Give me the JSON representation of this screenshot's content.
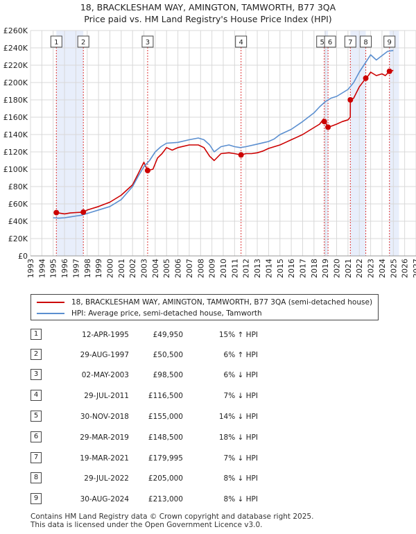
{
  "title_line1": "18, BRACKLESHAM WAY, AMINGTON, TAMWORTH, B77 3QA",
  "title_line2": "Price paid vs. HM Land Registry's House Price Index (HPI)",
  "legend": {
    "property": "18, BRACKLESHAM WAY, AMINGTON, TAMWORTH, B77 3QA (semi-detached house)",
    "hpi": "HPI: Average price, semi-detached house, Tamworth"
  },
  "colors": {
    "property": "#cc0000",
    "hpi": "#5b8fd0",
    "shade": "#e8eefb",
    "grid": "#d8d8d8"
  },
  "sales": [
    {
      "n": "1",
      "date": "12-APR-1995",
      "price": "£49,950",
      "hpi": "15% ↑ HPI"
    },
    {
      "n": "2",
      "date": "29-AUG-1997",
      "price": "£50,500",
      "hpi": "6% ↑ HPI"
    },
    {
      "n": "3",
      "date": "02-MAY-2003",
      "price": "£98,500",
      "hpi": "6% ↓ HPI"
    },
    {
      "n": "4",
      "date": "29-JUL-2011",
      "price": "£116,500",
      "hpi": "7% ↓ HPI"
    },
    {
      "n": "5",
      "date": "30-NOV-2018",
      "price": "£155,000",
      "hpi": "14% ↓ HPI"
    },
    {
      "n": "6",
      "date": "29-MAR-2019",
      "price": "£148,500",
      "hpi": "18% ↓ HPI"
    },
    {
      "n": "7",
      "date": "19-MAR-2021",
      "price": "£179,995",
      "hpi": "7% ↓ HPI"
    },
    {
      "n": "8",
      "date": "29-JUL-2022",
      "price": "£205,000",
      "hpi": "8% ↓ HPI"
    },
    {
      "n": "9",
      "date": "30-AUG-2024",
      "price": "£213,000",
      "hpi": "8% ↓ HPI"
    }
  ],
  "footer": {
    "line1": "Contains HM Land Registry data © Crown copyright and database right 2025.",
    "line2": "This data is licensed under the Open Government Licence v3.0."
  },
  "chart_data": {
    "type": "line",
    "title": "18, BRACKLESHAM WAY, AMINGTON, TAMWORTH, B77 3QA",
    "subtitle": "Price paid vs. HM Land Registry's House Price Index (HPI)",
    "xlabel": "",
    "ylabel": "",
    "xlim": [
      1993,
      2027
    ],
    "ylim": [
      0,
      260000
    ],
    "x_ticks": [
      1993,
      1994,
      1995,
      1996,
      1997,
      1998,
      1999,
      2000,
      2001,
      2002,
      2003,
      2004,
      2005,
      2006,
      2007,
      2008,
      2009,
      2010,
      2011,
      2012,
      2013,
      2014,
      2015,
      2016,
      2017,
      2018,
      2019,
      2020,
      2021,
      2022,
      2023,
      2024,
      2025,
      2026,
      2027
    ],
    "y_ticks": [
      0,
      20000,
      40000,
      60000,
      80000,
      100000,
      120000,
      140000,
      160000,
      180000,
      200000,
      220000,
      240000,
      260000
    ],
    "y_tick_labels": [
      "£0",
      "£20K",
      "£40K",
      "£60K",
      "£80K",
      "£100K",
      "£120K",
      "£140K",
      "£160K",
      "£180K",
      "£200K",
      "£220K",
      "£240K",
      "£260K"
    ],
    "shaded_intervals": [
      [
        1995.28,
        1997.66
      ],
      [
        2018.91,
        2019.24
      ],
      [
        2021.21,
        2022.57
      ],
      [
        2024.66,
        2025.5
      ]
    ],
    "sale_markers": [
      {
        "n": "1",
        "x": 1995.28,
        "y": 49950
      },
      {
        "n": "2",
        "x": 1997.66,
        "y": 50500
      },
      {
        "n": "3",
        "x": 2003.33,
        "y": 98500
      },
      {
        "n": "4",
        "x": 2011.57,
        "y": 116500
      },
      {
        "n": "5",
        "x": 2018.91,
        "y": 155000
      },
      {
        "n": "6",
        "x": 2019.24,
        "y": 148500
      },
      {
        "n": "7",
        "x": 2021.21,
        "y": 179995
      },
      {
        "n": "8",
        "x": 2022.57,
        "y": 205000
      },
      {
        "n": "9",
        "x": 2024.66,
        "y": 213000
      }
    ],
    "series": [
      {
        "name": "18, BRACKLESHAM WAY, AMINGTON, TAMWORTH, B77 3QA (semi-detached house)",
        "x": [
          1995.28,
          1996.0,
          1996.5,
          1997.0,
          1997.66,
          1998.0,
          1999.0,
          2000.0,
          2001.0,
          2002.0,
          2002.5,
          2003.0,
          2003.33,
          2003.8,
          2004.2,
          2004.6,
          2005.0,
          2005.5,
          2006.0,
          2007.0,
          2007.8,
          2008.3,
          2008.8,
          2009.2,
          2009.8,
          2010.5,
          2011.0,
          2011.57,
          2012.0,
          2012.5,
          2013.0,
          2013.5,
          2014.0,
          2014.5,
          2015.0,
          2015.5,
          2016.0,
          2016.5,
          2017.0,
          2017.5,
          2018.0,
          2018.5,
          2018.85,
          2018.91,
          2019.1,
          2019.24,
          2019.6,
          2020.0,
          2020.5,
          2021.0,
          2021.2,
          2021.21,
          2021.5,
          2022.0,
          2022.57,
          2022.8,
          2023.0,
          2023.5,
          2024.0,
          2024.3,
          2024.66,
          2025.0
        ],
        "y": [
          49950,
          48500,
          49500,
          50000,
          50500,
          53000,
          57000,
          62000,
          70000,
          82000,
          95000,
          108000,
          98500,
          100000,
          113000,
          118000,
          125000,
          122000,
          125000,
          128000,
          128000,
          125000,
          115000,
          110000,
          118000,
          119000,
          118000,
          116500,
          118000,
          118000,
          119000,
          121000,
          124000,
          126000,
          128000,
          131000,
          134000,
          137000,
          140000,
          144000,
          148000,
          152000,
          158000,
          155000,
          152000,
          148500,
          150000,
          152000,
          155000,
          157000,
          160000,
          179995,
          182000,
          195000,
          205000,
          208000,
          212000,
          208000,
          210000,
          208000,
          213000,
          214000
        ]
      },
      {
        "name": "HPI: Average price, semi-detached house, Tamworth",
        "x": [
          1995.0,
          1995.5,
          1996.0,
          1996.5,
          1997.0,
          1997.5,
          1998.0,
          1999.0,
          2000.0,
          2001.0,
          2002.0,
          2002.5,
          2003.0,
          2003.5,
          2004.0,
          2004.5,
          2005.0,
          2006.0,
          2007.0,
          2007.8,
          2008.3,
          2008.8,
          2009.2,
          2009.8,
          2010.5,
          2011.0,
          2011.5,
          2012.0,
          2013.0,
          2014.0,
          2014.5,
          2015.0,
          2016.0,
          2017.0,
          2018.0,
          2018.5,
          2019.0,
          2019.5,
          2020.0,
          2020.5,
          2021.0,
          2021.5,
          2022.0,
          2022.5,
          2023.0,
          2023.5,
          2024.0,
          2024.5,
          2025.0
        ],
        "y": [
          44000,
          43500,
          44000,
          45000,
          46000,
          47000,
          49000,
          53000,
          57000,
          65000,
          80000,
          92000,
          103000,
          110000,
          120000,
          126000,
          130000,
          131000,
          134000,
          136000,
          134000,
          128000,
          120000,
          126000,
          128000,
          126000,
          125000,
          126000,
          129000,
          132000,
          135000,
          140000,
          146000,
          155000,
          165000,
          172000,
          178000,
          182000,
          184000,
          188000,
          192000,
          200000,
          212000,
          222000,
          232000,
          226000,
          231000,
          236000,
          237000
        ]
      }
    ]
  }
}
